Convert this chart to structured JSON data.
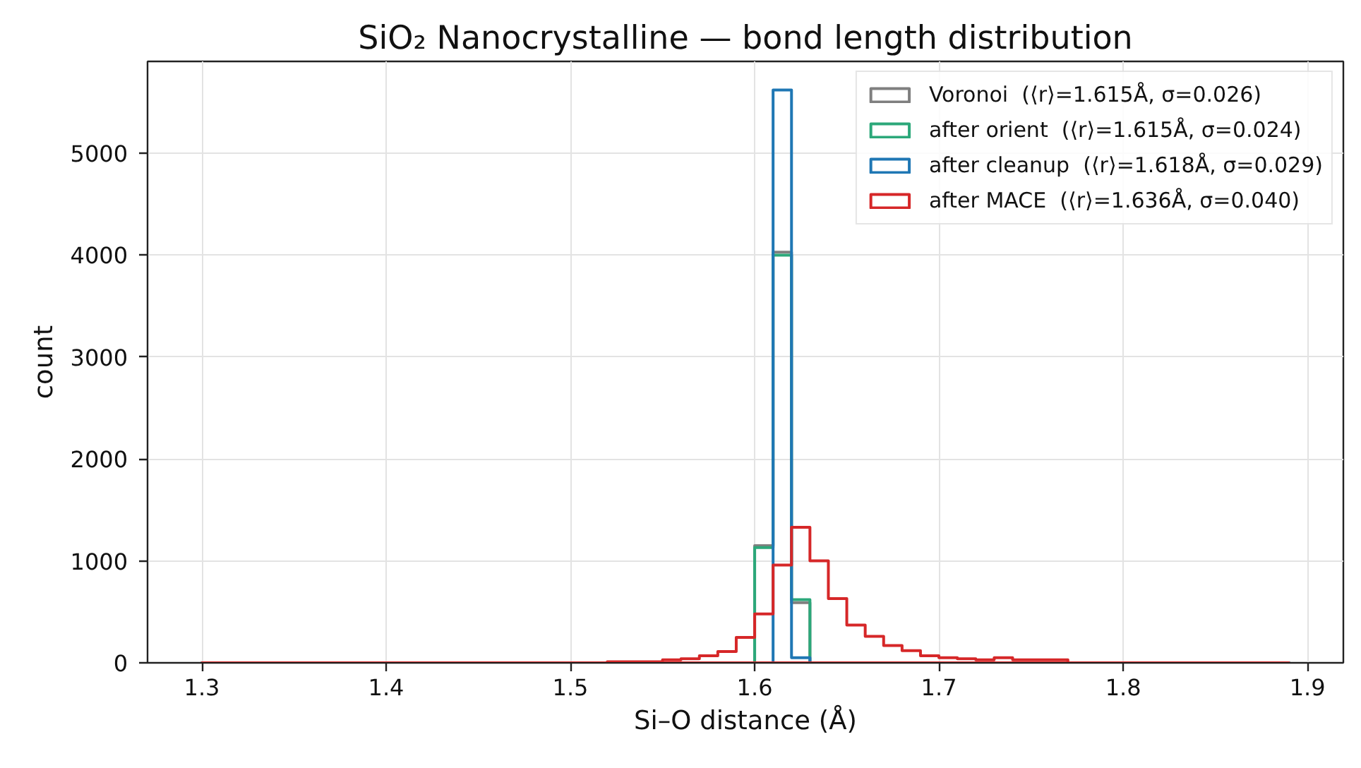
{
  "chart_data": {
    "type": "histogram",
    "title": "SiO₂ Nanocrystalline — bond length distribution",
    "xlabel": "Si–O distance (Å)",
    "ylabel": "count",
    "bins": [
      1.3,
      1.31,
      1.32,
      1.33,
      1.34,
      1.35,
      1.36,
      1.37,
      1.38,
      1.39,
      1.4,
      1.41,
      1.42,
      1.43,
      1.44,
      1.45,
      1.46,
      1.47,
      1.48,
      1.49,
      1.5,
      1.51,
      1.52,
      1.53,
      1.54,
      1.55,
      1.56,
      1.57,
      1.58,
      1.59,
      1.6,
      1.61,
      1.62,
      1.63,
      1.64,
      1.65,
      1.66,
      1.67,
      1.68,
      1.69,
      1.7,
      1.71,
      1.72,
      1.73,
      1.74,
      1.75,
      1.76,
      1.77,
      1.78,
      1.79,
      1.8,
      1.81,
      1.82,
      1.83,
      1.84,
      1.85,
      1.86,
      1.87,
      1.88,
      1.89
    ],
    "series": [
      {
        "name": "Voronoi  (⟨r⟩=1.615Å, σ=0.026)",
        "color": "#7f7f7f",
        "values": [
          0,
          0,
          0,
          0,
          0,
          0,
          0,
          0,
          0,
          0,
          0,
          0,
          0,
          0,
          0,
          0,
          0,
          0,
          0,
          0,
          0,
          0,
          0,
          0,
          0,
          0,
          0,
          0,
          0,
          0,
          1150,
          4030,
          590,
          0,
          0,
          0,
          0,
          0,
          0,
          0,
          0,
          0,
          0,
          0,
          0,
          0,
          0,
          0,
          0,
          0,
          0,
          0,
          0,
          0,
          0,
          0,
          0,
          0,
          0
        ]
      },
      {
        "name": "after orient  (⟨r⟩=1.615Å, σ=0.024)",
        "color": "#2ca87a",
        "values": [
          0,
          0,
          0,
          0,
          0,
          0,
          0,
          0,
          0,
          0,
          0,
          0,
          0,
          0,
          0,
          0,
          0,
          0,
          0,
          0,
          0,
          0,
          0,
          0,
          0,
          0,
          0,
          0,
          0,
          0,
          1130,
          4000,
          620,
          0,
          0,
          0,
          0,
          0,
          0,
          0,
          0,
          0,
          0,
          0,
          0,
          0,
          0,
          0,
          0,
          0,
          0,
          0,
          0,
          0,
          0,
          0,
          0,
          0,
          0
        ]
      },
      {
        "name": "after cleanup  (⟨r⟩=1.618Å, σ=0.029)",
        "color": "#1f77b4",
        "values": [
          0,
          0,
          0,
          0,
          0,
          0,
          0,
          0,
          0,
          0,
          0,
          0,
          0,
          0,
          0,
          0,
          0,
          0,
          0,
          0,
          0,
          0,
          0,
          0,
          0,
          0,
          0,
          0,
          0,
          0,
          0,
          5620,
          50,
          0,
          0,
          0,
          0,
          0,
          0,
          0,
          0,
          0,
          0,
          0,
          0,
          0,
          0,
          0,
          0,
          0,
          0,
          0,
          0,
          0,
          0,
          0,
          0,
          0,
          0
        ]
      },
      {
        "name": "after MACE  (⟨r⟩=1.636Å, σ=0.040)",
        "color": "#d62728",
        "values": [
          0,
          0,
          0,
          0,
          0,
          0,
          0,
          0,
          0,
          0,
          0,
          0,
          0,
          0,
          0,
          0,
          0,
          0,
          0,
          0,
          0,
          0,
          10,
          10,
          10,
          30,
          40,
          70,
          110,
          250,
          480,
          960,
          1330,
          1000,
          630,
          370,
          260,
          170,
          120,
          70,
          50,
          40,
          30,
          50,
          30,
          30,
          30,
          0,
          0,
          0,
          0,
          0,
          0,
          0,
          0,
          0,
          0,
          0,
          0
        ]
      }
    ],
    "xlim": [
      1.2705,
      1.9195
    ],
    "xticks": [
      1.3,
      1.4,
      1.5,
      1.6,
      1.7,
      1.8,
      1.9
    ],
    "ylim": [
      0,
      5901
    ],
    "yticks": [
      0,
      1000,
      2000,
      3000,
      4000,
      5000
    ],
    "grid": true,
    "legend": "top right"
  }
}
